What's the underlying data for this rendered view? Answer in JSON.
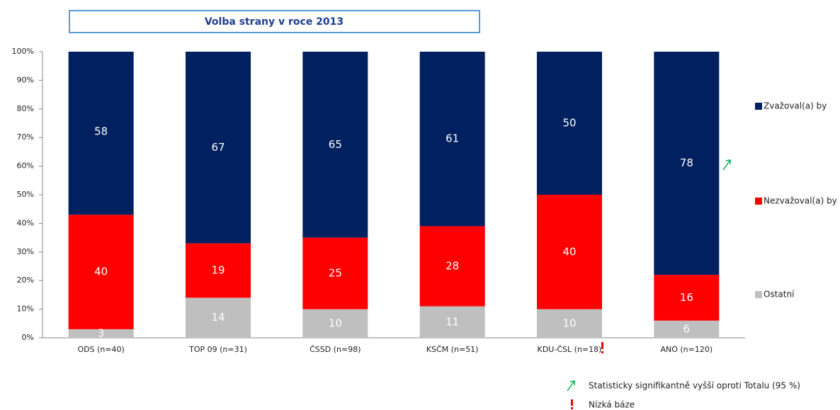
{
  "chart_data": {
    "type": "stacked_bar",
    "title": "Volba strany v roce 2013",
    "categories": [
      "ODS (n=40)",
      "TOP 09 (n=31)",
      "ČSSD (n=98)",
      "KSČM (n=51)",
      "KDU-ČSL (n=18)",
      "ANO (n=120)"
    ],
    "series": [
      {
        "name": "Ostatní",
        "color": "#bfbfbf",
        "values": [
          3,
          14,
          10,
          11,
          10,
          6
        ]
      },
      {
        "name": "Nezvažoval(a) by",
        "color": "#ff0000",
        "values": [
          40,
          19,
          25,
          28,
          40,
          16
        ]
      },
      {
        "name": "Zvažoval(a) by",
        "color": "#002060",
        "values": [
          58,
          67,
          65,
          61,
          50,
          78
        ]
      }
    ],
    "ylim": [
      0,
      100
    ],
    "yticks": [
      {
        "value": 0,
        "label": "0%"
      },
      {
        "value": 10,
        "label": "10%"
      },
      {
        "value": 20,
        "label": "20%"
      },
      {
        "value": 30,
        "label": "30%"
      },
      {
        "value": 40,
        "label": "40%"
      },
      {
        "value": 50,
        "label": "50%"
      },
      {
        "value": 60,
        "label": "60%"
      },
      {
        "value": 70,
        "label": "70%"
      },
      {
        "value": 80,
        "label": "80%"
      },
      {
        "value": 90,
        "label": "90%"
      },
      {
        "value": 100,
        "label": "100%"
      }
    ],
    "legend": "right",
    "footnotes": [
      "Statisticky signifikantně vyšší oproti Totalu (95 %)",
      "Nízká báze"
    ]
  }
}
